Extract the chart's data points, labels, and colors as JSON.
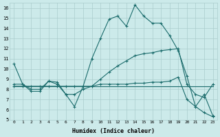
{
  "xlabel": "Humidex (Indice chaleur)",
  "bg_color": "#cceaea",
  "grid_color": "#aacccc",
  "line_color": "#1a6b6b",
  "xlim": [
    -0.5,
    23.5
  ],
  "ylim": [
    5,
    16.5
  ],
  "yticks": [
    5,
    6,
    7,
    8,
    9,
    10,
    11,
    12,
    13,
    14,
    15,
    16
  ],
  "xticks": [
    0,
    1,
    2,
    3,
    4,
    5,
    6,
    7,
    8,
    9,
    10,
    11,
    12,
    13,
    14,
    15,
    16,
    17,
    18,
    19,
    20,
    21,
    22,
    23
  ],
  "line1_x": [
    0,
    1,
    2,
    3,
    4,
    5,
    6,
    7,
    8,
    9,
    10,
    11,
    12,
    13,
    14,
    15,
    16,
    17,
    18,
    19,
    20,
    21,
    22,
    23
  ],
  "line1_y": [
    10.5,
    8.5,
    7.8,
    7.8,
    8.8,
    8.7,
    7.5,
    6.3,
    8.3,
    11.0,
    13.0,
    14.9,
    15.2,
    14.2,
    16.3,
    15.2,
    14.5,
    14.5,
    13.3,
    11.8,
    9.3,
    6.3,
    7.5,
    5.4
  ],
  "line2_x": [
    0,
    1,
    2,
    3,
    4,
    5,
    6,
    7,
    8,
    9,
    10,
    11,
    12,
    13,
    14,
    15,
    16,
    17,
    18,
    19,
    20,
    21,
    22,
    23
  ],
  "line2_y": [
    8.3,
    8.3,
    8.3,
    8.3,
    8.3,
    8.3,
    8.3,
    8.3,
    8.3,
    8.3,
    9.0,
    9.7,
    10.3,
    10.8,
    11.3,
    11.5,
    11.6,
    11.8,
    11.9,
    12.0,
    8.5,
    7.5,
    7.2,
    8.5
  ],
  "line3_x": [
    0,
    1,
    2,
    3,
    4,
    5,
    6,
    7,
    8,
    9,
    10,
    11,
    12,
    13,
    14,
    15,
    16,
    17,
    18,
    19,
    20,
    21,
    22,
    23
  ],
  "line3_y": [
    8.5,
    8.5,
    8.0,
    8.0,
    8.8,
    8.5,
    7.5,
    7.5,
    8.0,
    8.3,
    8.5,
    8.5,
    8.5,
    8.5,
    8.6,
    8.6,
    8.7,
    8.7,
    8.8,
    9.2,
    7.0,
    6.3,
    5.7,
    5.3
  ],
  "line4_x": [
    0,
    23
  ],
  "line4_y": [
    8.3,
    8.3
  ]
}
